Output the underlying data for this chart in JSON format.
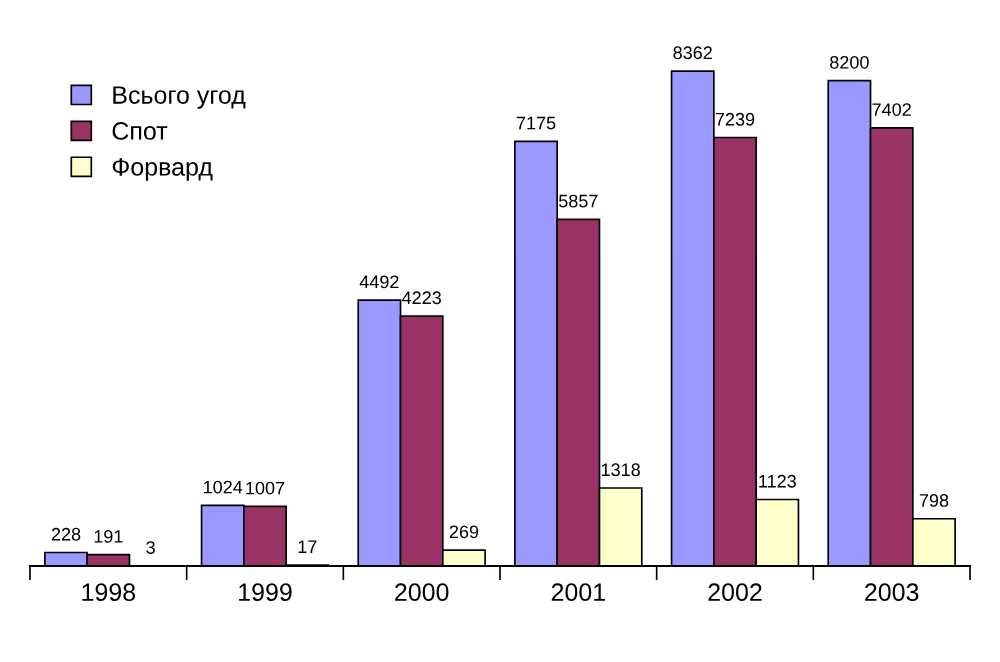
{
  "chart_data": {
    "type": "bar",
    "categories": [
      "1998",
      "1999",
      "2000",
      "2001",
      "2002",
      "2003"
    ],
    "series": [
      {
        "name": "Всього угод",
        "color": "#9999ff",
        "values": [
          228,
          1024,
          4492,
          7175,
          8362,
          8200
        ]
      },
      {
        "name": "Спот",
        "color": "#993366",
        "values": [
          191,
          1007,
          4223,
          5857,
          7239,
          7402
        ]
      },
      {
        "name": "Форвард",
        "color": "#ffffcc",
        "values": [
          3,
          17,
          269,
          1318,
          1123,
          798
        ]
      }
    ],
    "data_labels": true,
    "legend": "top left",
    "grid": false,
    "tick_labels": "x"
  }
}
